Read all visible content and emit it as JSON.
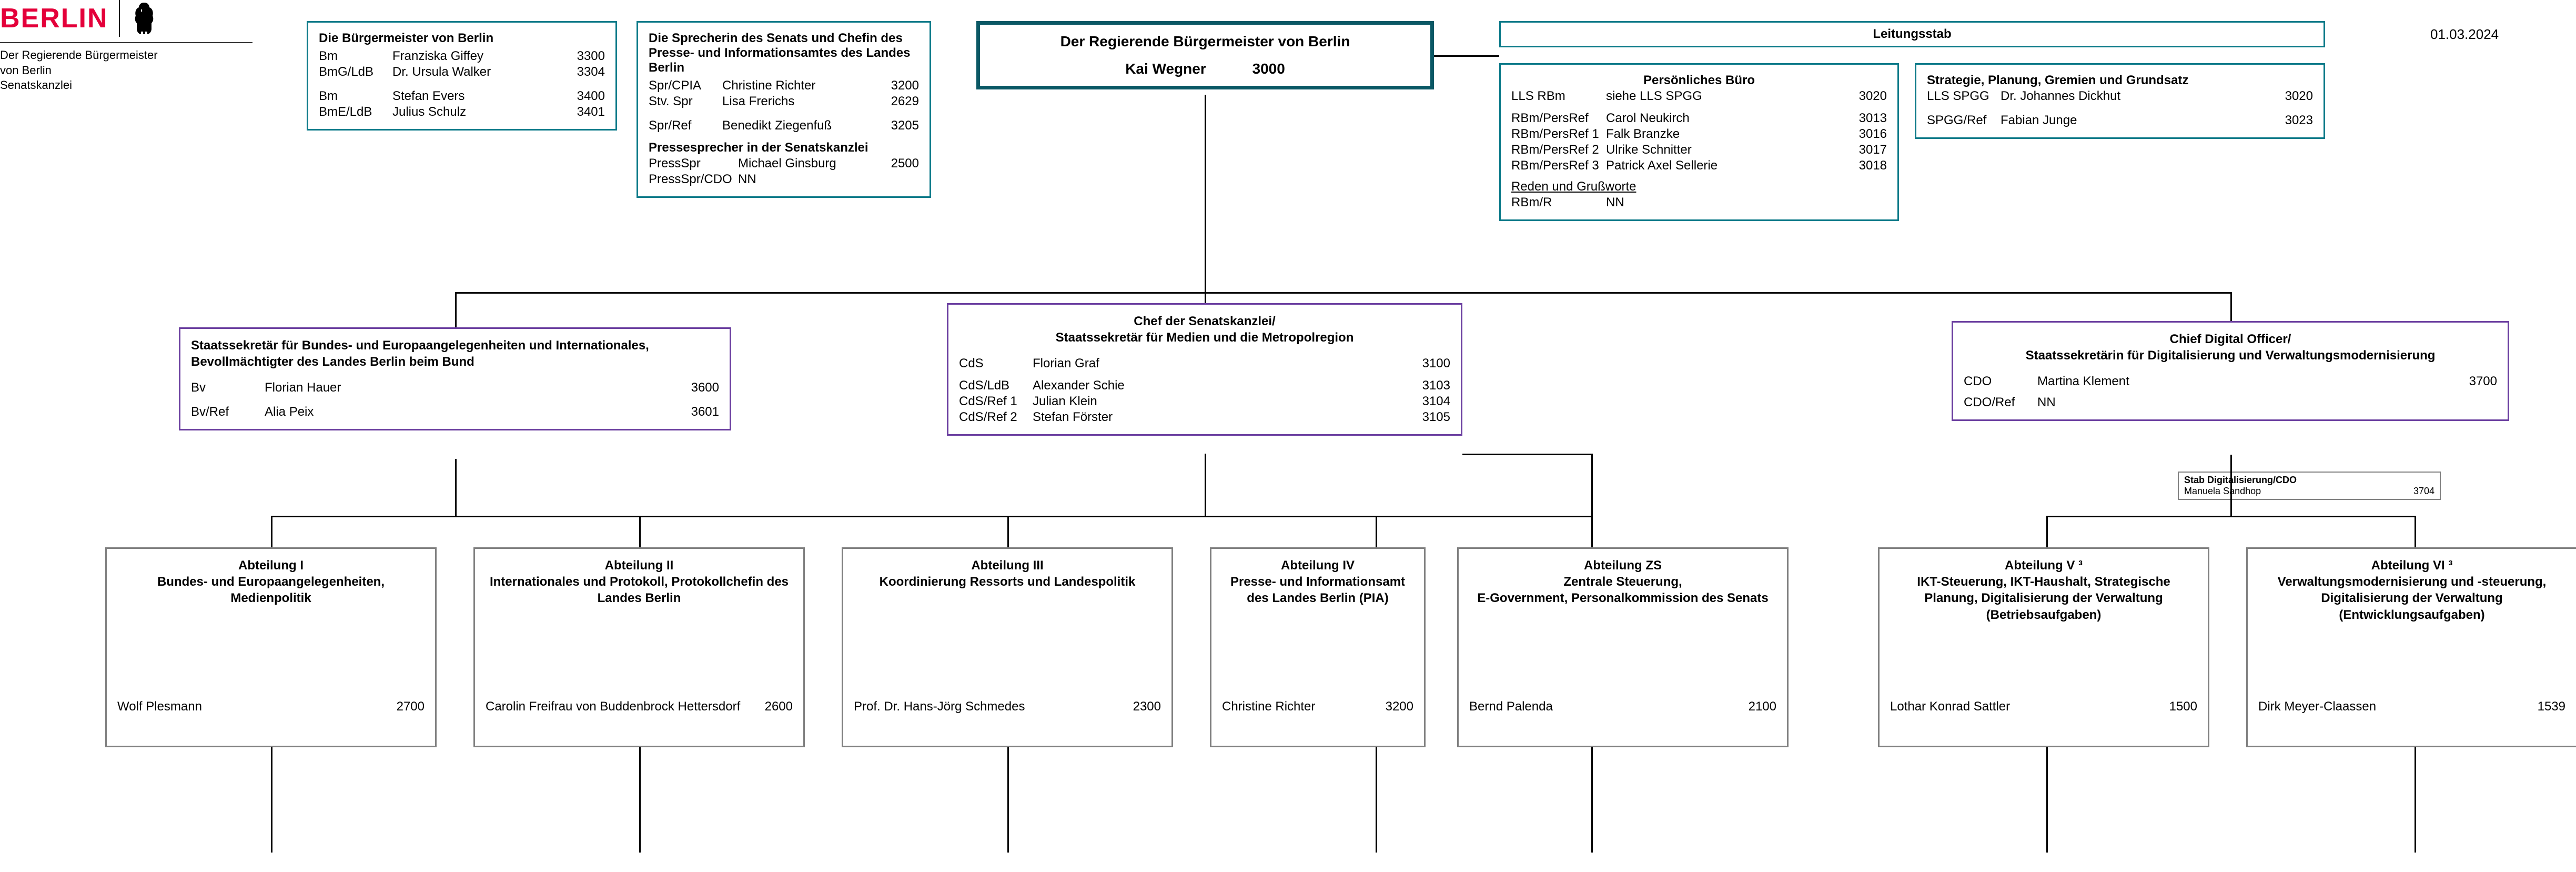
{
  "date": "01.03.2024",
  "logo": {
    "word": "BERLIN",
    "sub1": "Der Regierende Bürgermeister",
    "sub2": "von Berlin",
    "sub3": "Senatskanzlei"
  },
  "mayors": {
    "title": "Die Bürgermeister von Berlin",
    "rows": [
      {
        "role": "Bm",
        "name": "Franziska Giffey",
        "code": "3300"
      },
      {
        "role": "BmG/LdB",
        "name": "Dr. Ursula Walker",
        "code": "3304"
      },
      {
        "role": "Bm",
        "name": "Stefan Evers",
        "code": "3400"
      },
      {
        "role": "BmE/LdB",
        "name": "Julius Schulz",
        "code": "3401"
      }
    ]
  },
  "spokes": {
    "title": "Die Sprecherin des Senats und Chefin des Presse- und Informationsamtes des Landes Berlin",
    "rows1": [
      {
        "role": "Spr/CPIA",
        "name": "Christine Richter",
        "code": "3200"
      },
      {
        "role": "Stv. Spr",
        "name": "Lisa Frerichs",
        "code": "2629"
      }
    ],
    "rows2": [
      {
        "role": "Spr/Ref",
        "name": "Benedikt Ziegenfuß",
        "code": "3205"
      }
    ],
    "sub2": "Pressesprecher in der Senatskanzlei",
    "rows3": [
      {
        "role": "PressSpr",
        "name": "Michael Ginsburg",
        "code": "2500"
      },
      {
        "role": "PressSpr/CDO",
        "name": "NN",
        "code": ""
      }
    ]
  },
  "governing": {
    "title": "Der Regierende Bürgermeister von Berlin",
    "name": "Kai Wegner",
    "code": "3000"
  },
  "leitung": {
    "title": "Leitungsstab",
    "left": {
      "title": "Persönliches Büro",
      "rows": [
        {
          "role": "LLS RBm",
          "name": "siehe LLS SPGG",
          "code": "3020"
        }
      ],
      "rows2": [
        {
          "role": "RBm/PersRef",
          "name": "Carol Neukirch",
          "code": "3013"
        },
        {
          "role": "RBm/PersRef 1",
          "name": "Falk Branzke",
          "code": "3016"
        },
        {
          "role": "RBm/PersRef 2",
          "name": "Ulrike Schnitter",
          "code": "3017"
        },
        {
          "role": "RBm/PersRef 3",
          "name": "Patrick Axel Sellerie",
          "code": "3018"
        }
      ],
      "sub3": "Reden und Grußworte",
      "rows3": [
        {
          "role": "RBm/R",
          "name": "NN",
          "code": ""
        }
      ]
    },
    "right": {
      "title": "Strategie, Planung, Gremien und Grundsatz",
      "rows": [
        {
          "role": "LLS SPGG",
          "name": "Dr. Johannes Dickhut",
          "code": "3020"
        }
      ],
      "rows2": [
        {
          "role": "SPGG/Ref",
          "name": "Fabian Junge",
          "code": "3023"
        }
      ]
    }
  },
  "bv": {
    "title": "Staatssekretär für Bundes- und Europaangelegenheiten und Internationales, Bevollmächtigter des Landes Berlin beim Bund",
    "rows": [
      {
        "role": "Bv",
        "name": "Florian Hauer",
        "code": "3600"
      },
      {
        "role": "Bv/Ref",
        "name": "Alia Peix",
        "code": "3601"
      }
    ]
  },
  "cds": {
    "title": "Chef der Senatskanzlei/\nStaatssekretär für Medien und die Metropolregion",
    "rows": [
      {
        "role": "CdS",
        "name": "Florian Graf",
        "code": "3100"
      }
    ],
    "rows2": [
      {
        "role": "CdS/LdB",
        "name": "Alexander Schie",
        "code": "3103"
      },
      {
        "role": "CdS/Ref 1",
        "name": "Julian Klein",
        "code": "3104"
      },
      {
        "role": "CdS/Ref 2",
        "name": "Stefan Förster",
        "code": "3105"
      }
    ]
  },
  "cdo": {
    "title": "Chief Digital Officer/\nStaatssekretärin für Digitalisierung und Verwaltungsmodernisierung",
    "rows": [
      {
        "role": "CDO",
        "name": "Martina Klement",
        "code": "3700"
      },
      {
        "role": "CDO/Ref",
        "name": "NN",
        "code": ""
      }
    ]
  },
  "stab_cdo": {
    "title": "Stab Digitalisierung/CDO",
    "name": "Manuela Sandhop",
    "code": "3704"
  },
  "depts": [
    {
      "title": "Abteilung I\nBundes- und Europaangelegenheiten, Medienpolitik",
      "name": "Wolf Plesmann",
      "code": "2700"
    },
    {
      "title": "Abteilung II\nInternationales und Protokoll, Protokollchefin des Landes Berlin",
      "name": "Carolin Freifrau von Buddenbrock Hettersdorf",
      "code": "2600"
    },
    {
      "title": "Abteilung III\nKoordinierung Ressorts und Landespolitik",
      "name": "Prof. Dr. Hans-Jörg Schmedes",
      "code": "2300"
    },
    {
      "title": "Abteilung IV\nPresse- und Informationsamt des Landes Berlin (PIA)",
      "name": "Christine Richter",
      "code": "3200"
    },
    {
      "title": "Abteilung ZS\nZentrale Steuerung,\nE-Government, Personalkommission des Senats",
      "name": "Bernd Palenda",
      "code": "2100"
    },
    {
      "title": "Abteilung V ³\nIKT-Steuerung, IKT-Haushalt, Strategische Planung, Digitalisierung der Verwaltung (Betriebsaufgaben)",
      "name": "Lothar Konrad Sattler",
      "code": "1500"
    },
    {
      "title": "Abteilung VI ³\nVerwaltungsmodernisierung und -steuerung, Digitalisierung der Verwaltung (Entwicklungsaufgaben)",
      "name": "Dirk Meyer-Claassen",
      "code": "1539"
    }
  ]
}
